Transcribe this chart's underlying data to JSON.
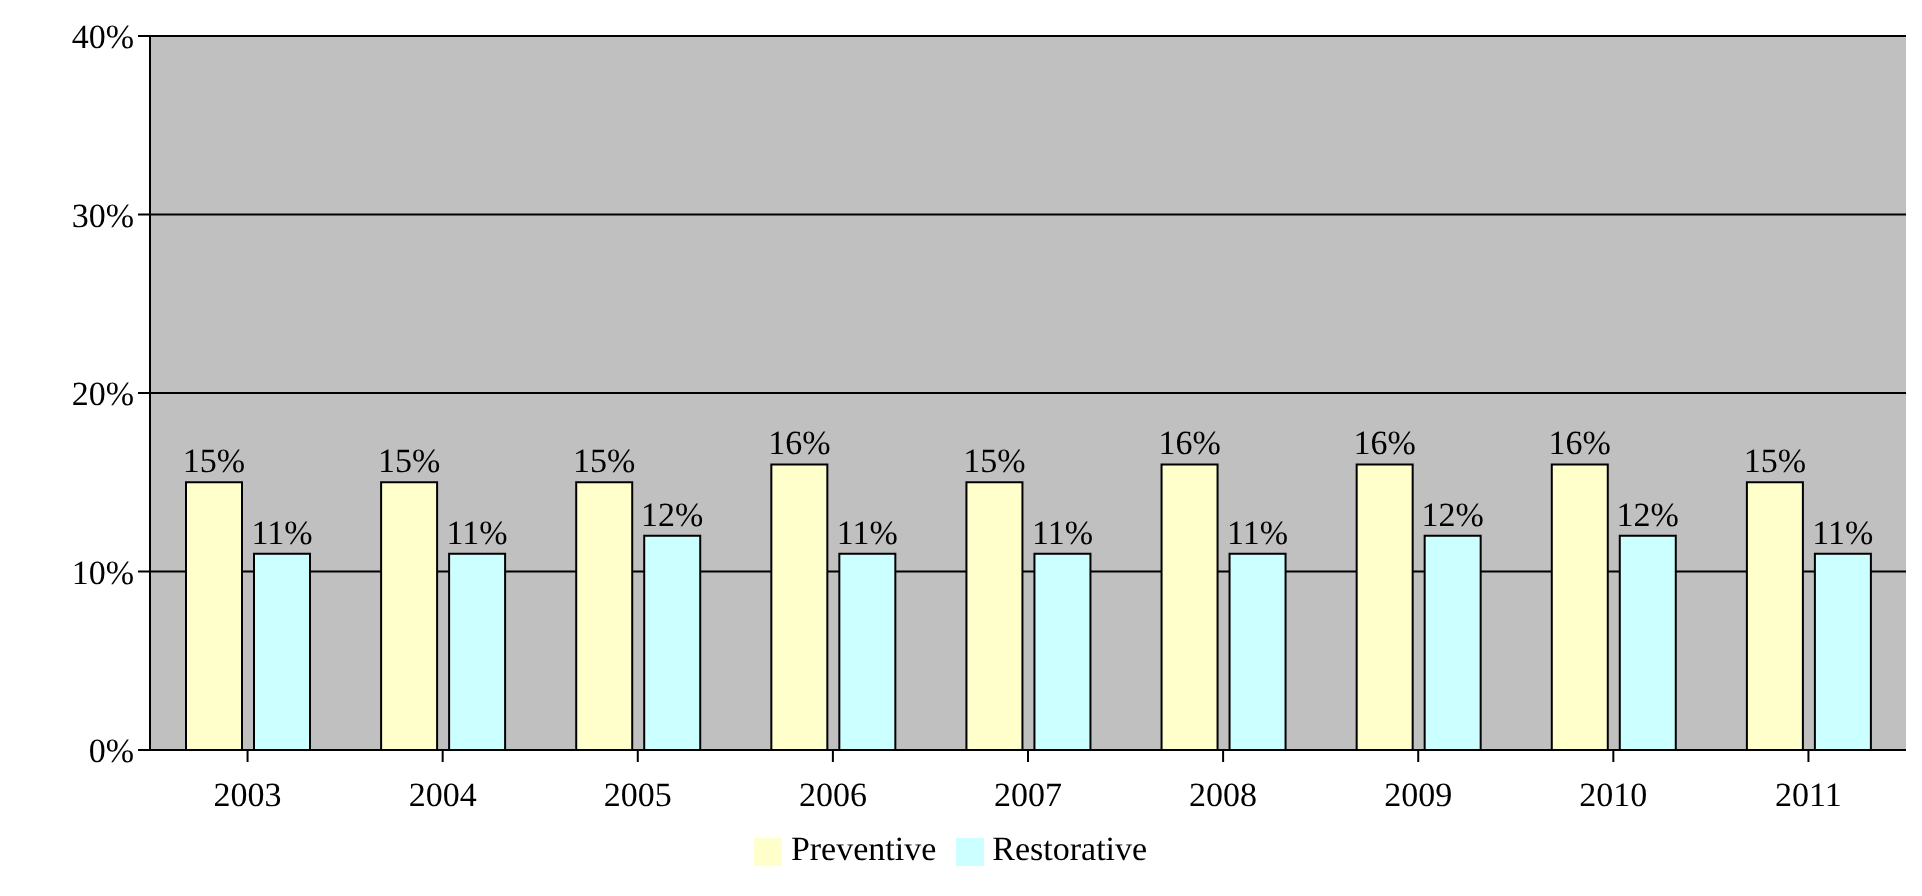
{
  "chart_data": {
    "type": "bar",
    "categories": [
      "2003",
      "2004",
      "2005",
      "2006",
      "2007",
      "2008",
      "2009",
      "2010",
      "2011"
    ],
    "series": [
      {
        "name": "Preventive",
        "color": "#ffffcc",
        "values": [
          15,
          15,
          15,
          16,
          15,
          16,
          16,
          16,
          15
        ],
        "value_labels": [
          "15%",
          "15%",
          "15%",
          "16%",
          "15%",
          "16%",
          "16%",
          "16%",
          "15%"
        ]
      },
      {
        "name": "Restorative",
        "color": "#ccffff",
        "values": [
          11,
          11,
          12,
          11,
          11,
          11,
          12,
          12,
          11
        ],
        "value_labels": [
          "11%",
          "11%",
          "12%",
          "11%",
          "11%",
          "11%",
          "12%",
          "12%",
          "11%"
        ]
      }
    ],
    "ylim": [
      0,
      40
    ],
    "yticks": [
      {
        "value": 0,
        "label": "0%"
      },
      {
        "value": 10,
        "label": "10%"
      },
      {
        "value": 20,
        "label": "20%"
      },
      {
        "value": 30,
        "label": "30%"
      },
      {
        "value": 40,
        "label": "40%"
      }
    ],
    "grid": "y",
    "legend": "bottom"
  }
}
